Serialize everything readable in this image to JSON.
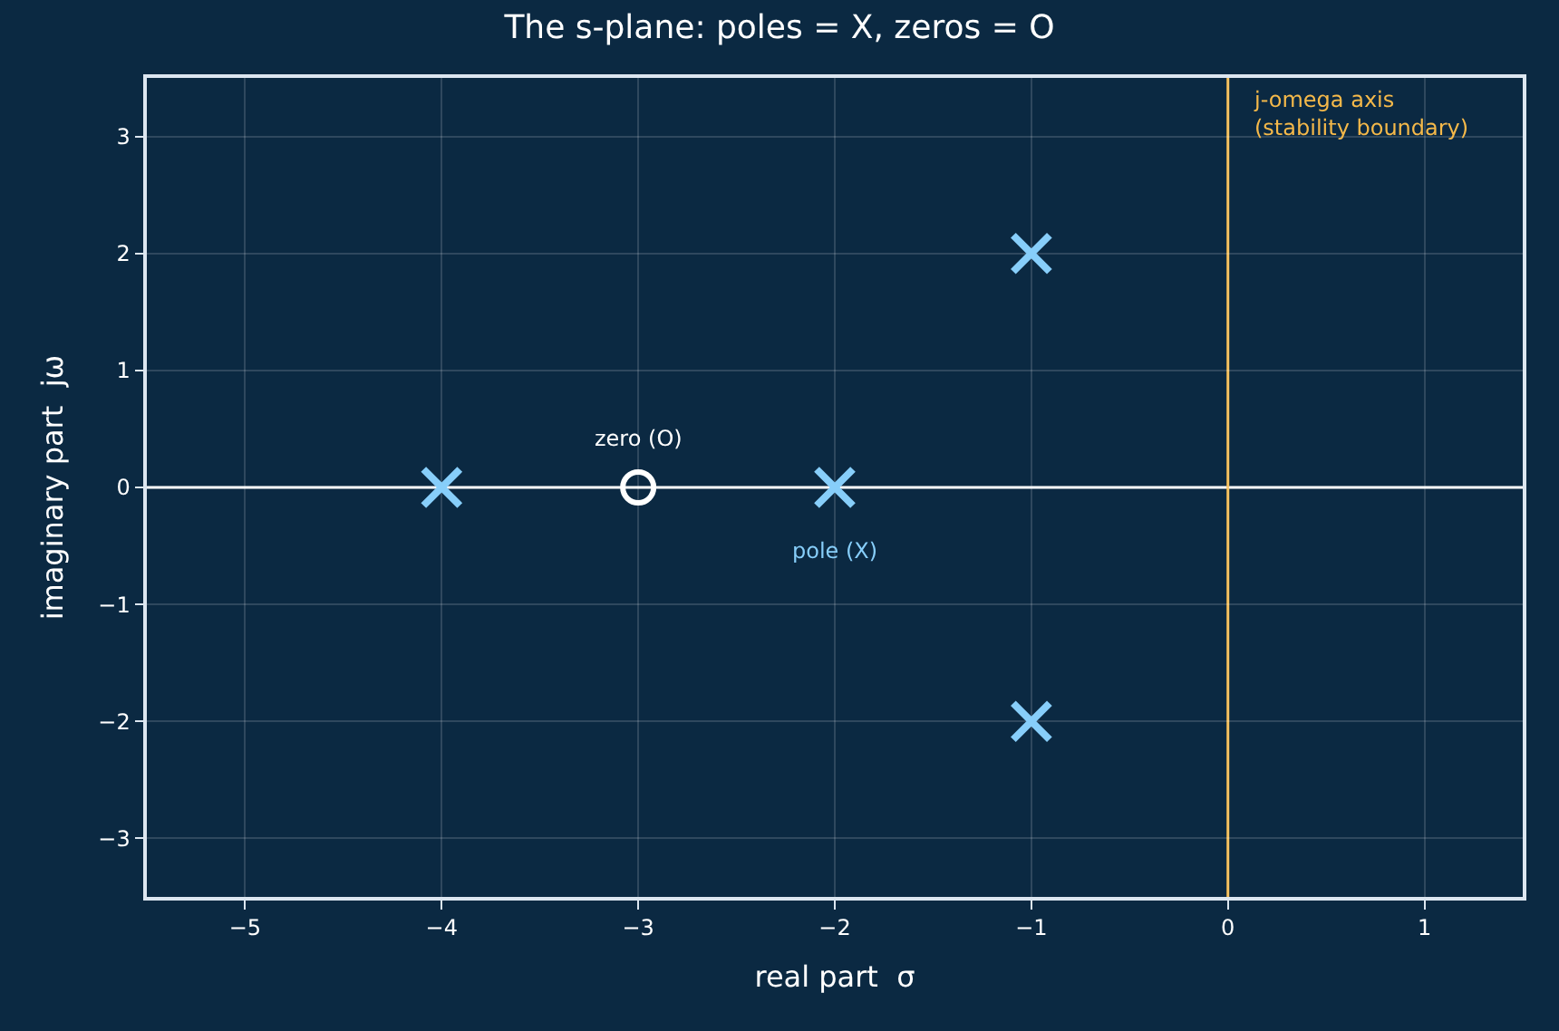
{
  "chart_data": {
    "type": "scatter",
    "title": "The s-plane: poles = X, zeros = O",
    "xlabel": "real part  σ",
    "ylabel": "imaginary part  jω",
    "series": [
      {
        "name": null,
        "color": "#87cefa",
        "marker": "cross",
        "x": [
          -4,
          -2,
          -1,
          -1
        ],
        "values": [
          0,
          0,
          2,
          -2
        ]
      },
      {
        "name": null,
        "color": "#ffffff",
        "marker": "circle",
        "x": [
          -3
        ],
        "values": [
          0
        ]
      }
    ],
    "annotations": [
      {
        "text": "pole (X)",
        "x": -2,
        "y": 0
      },
      {
        "text": "zero (O)",
        "x": -3,
        "y": 0
      }
    ],
    "ref_lines": [
      {
        "axis": "y",
        "value": 0,
        "label": null,
        "color": "#ffffff"
      },
      {
        "axis": "x",
        "value": 0,
        "label": "j-omega axis\n(stability boundary)",
        "color": "#f5b94a"
      }
    ],
    "xlim": [
      -5.5,
      1.5
    ],
    "xticks": [
      -5,
      -4,
      -3,
      -2,
      -1,
      0,
      1
    ],
    "ylim": [
      -3.5,
      3.5
    ],
    "yticks": [
      -3,
      -2,
      -1,
      0,
      1,
      2,
      3
    ],
    "grid": true
  }
}
